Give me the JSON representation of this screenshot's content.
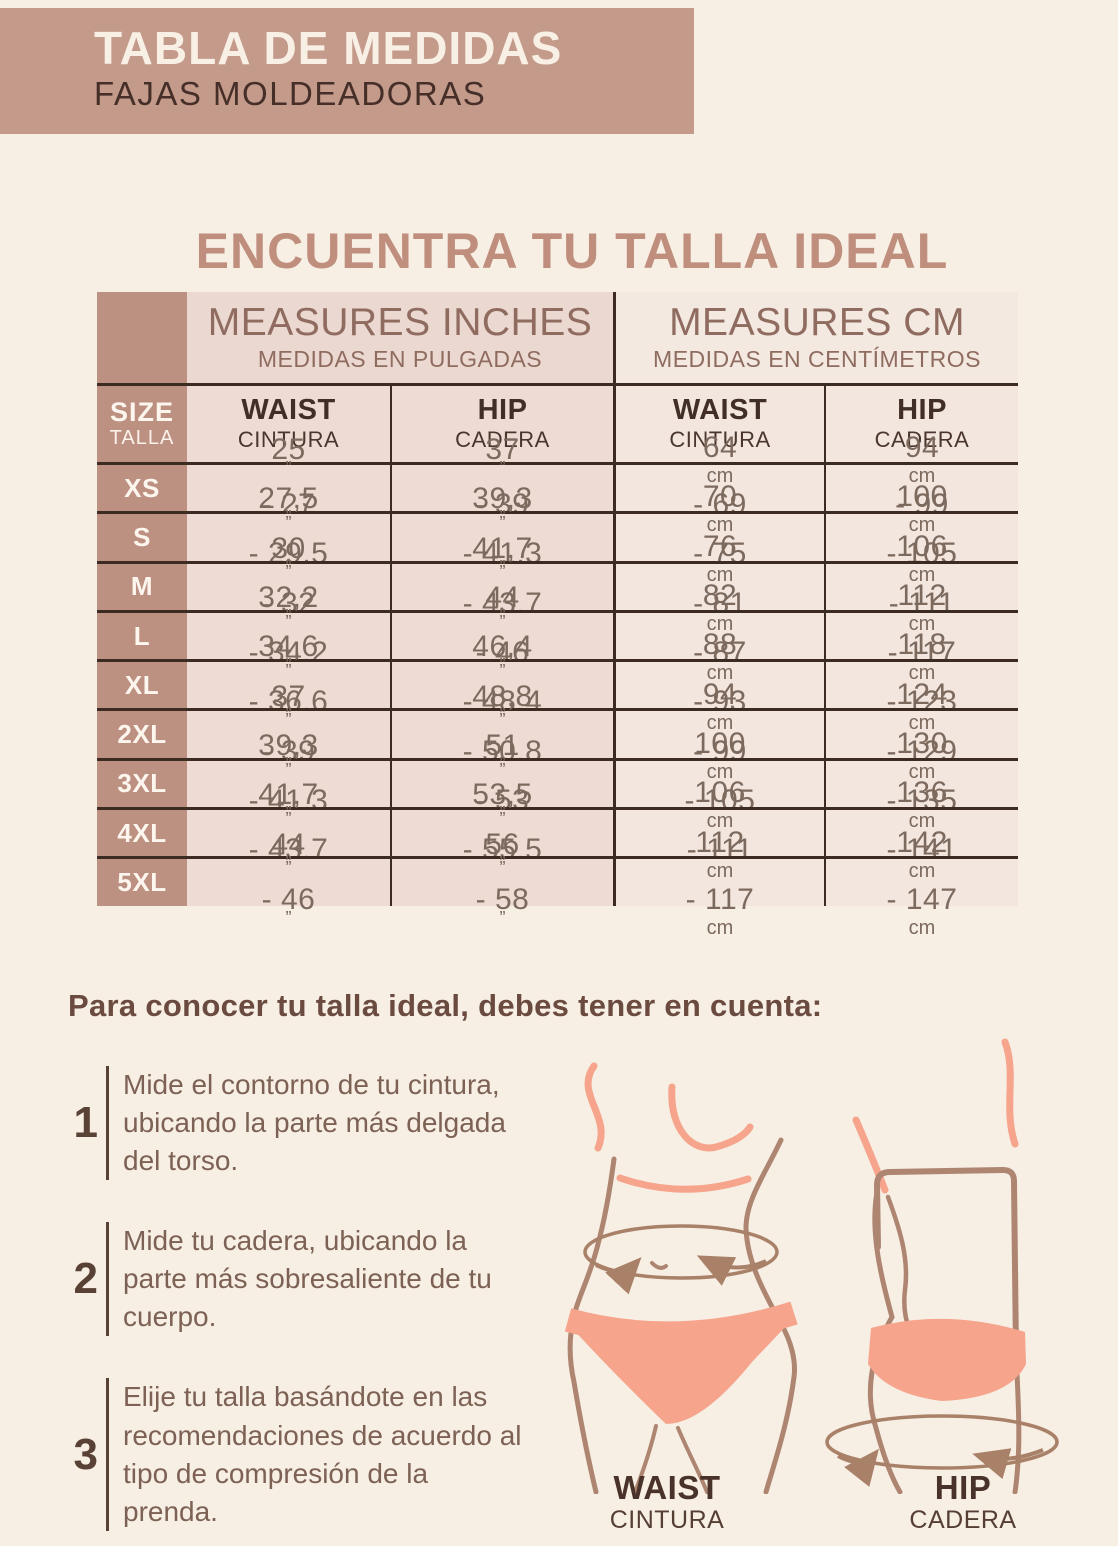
{
  "header": {
    "title": "TABLA DE MEDIDAS",
    "subtitle": "FAJAS MOLDEADORAS"
  },
  "main_heading": "ENCUENTRA TU TALLA IDEAL",
  "table": {
    "col_groups": [
      {
        "title": "MEASURES INCHES",
        "subtitle": "MEDIDAS EN PULGADAS"
      },
      {
        "title": "MEASURES CM",
        "subtitle": "MEDIDAS EN CENTÍMETROS"
      }
    ],
    "size_header": {
      "title": "SIZE",
      "subtitle": "TALLA"
    },
    "measure_headers": [
      {
        "title": "WAIST",
        "subtitle": "CINTURA"
      },
      {
        "title": "HIP",
        "subtitle": "CADERA"
      },
      {
        "title": "WAIST",
        "subtitle": "CINTURA"
      },
      {
        "title": "HIP",
        "subtitle": "CADERA"
      }
    ],
    "rows": [
      {
        "size": "XS",
        "waist_in": "25\" - 27\"",
        "hip_in": "37\" - 39\"",
        "waist_cm": "64cm - 69cm",
        "hip_cm": "94cm - 99cm"
      },
      {
        "size": "S",
        "waist_in": "27,5\" - 29,5\"",
        "hip_in": "39,3\" - 41,3\"",
        "waist_cm": "70cm - 75cm",
        "hip_cm": "100cm - 105cm"
      },
      {
        "size": "M",
        "waist_in": "30\" - 32\"",
        "hip_in": "41,7\" - 43,7\"",
        "waist_cm": "76cm - 81cm",
        "hip_cm": "106cm - 111cm"
      },
      {
        "size": "L",
        "waist_in": "32,2\" - 34,2\"",
        "hip_in": "44\" - 46\"",
        "waist_cm": "82cm - 87cm",
        "hip_cm": "112cm - 117cm"
      },
      {
        "size": "XL",
        "waist_in": "34,6\" - 36,6\"",
        "hip_in": "46,4\" - 48,4\"",
        "waist_cm": "88cm - 93cm",
        "hip_cm": "118cm - 123cm"
      },
      {
        "size": "2XL",
        "waist_in": "37\" - 39\"",
        "hip_in": "48,8\" - 50,8\"",
        "waist_cm": "94cm - 99cm",
        "hip_cm": "124cm - 129cm"
      },
      {
        "size": "3XL",
        "waist_in": "39,3\" - 41,3\"",
        "hip_in": "51\" - 53\"",
        "waist_cm": "100cm - 105cm",
        "hip_cm": "130cm - 135cm"
      },
      {
        "size": "4XL",
        "waist_in": "41,7\" - 43,7\"",
        "hip_in": "53,5\" - 55,5\"",
        "waist_cm": "106cm - 111cm",
        "hip_cm": "136cm - 141cm"
      },
      {
        "size": "5XL",
        "waist_in": "44\" - 46\"",
        "hip_in": "56\" - 58\"",
        "waist_cm": "112cm - 117cm",
        "hip_cm": "142cm - 147cm"
      }
    ]
  },
  "guide": {
    "heading": "Para conocer tu talla ideal, debes tener en cuenta:",
    "steps": [
      {
        "number": "1",
        "text": "Mide el contorno de tu cintura, ubicando la parte más delgada del torso."
      },
      {
        "number": "2",
        "text": "Mide tu cadera, ubicando la parte más sobresaliente de tu cuerpo."
      },
      {
        "number": "3",
        "text": "Elije tu talla basándote en las recomendaciones de acuerdo al tipo de compresión de la prenda."
      }
    ]
  },
  "figure_labels": {
    "waist": {
      "title": "WAIST",
      "subtitle": "CINTURA"
    },
    "hip": {
      "title": "HIP",
      "subtitle": "CADERA"
    }
  },
  "colors": {
    "page_background": "#f7eee4",
    "band_background": "#c49a8b",
    "band_title": "#f8efe5",
    "dark_brown_text": "#452f28",
    "heading_rose": "#bf8e7d",
    "size_column": "#bd9182",
    "inches_cells": "#eedcd4",
    "cm_cells": "#f2e6de",
    "table_border": "#3c2b23",
    "measure_text": "#7d6a5f",
    "illustration_line": "#ad8571",
    "illustration_pink": "#f6a48c"
  }
}
